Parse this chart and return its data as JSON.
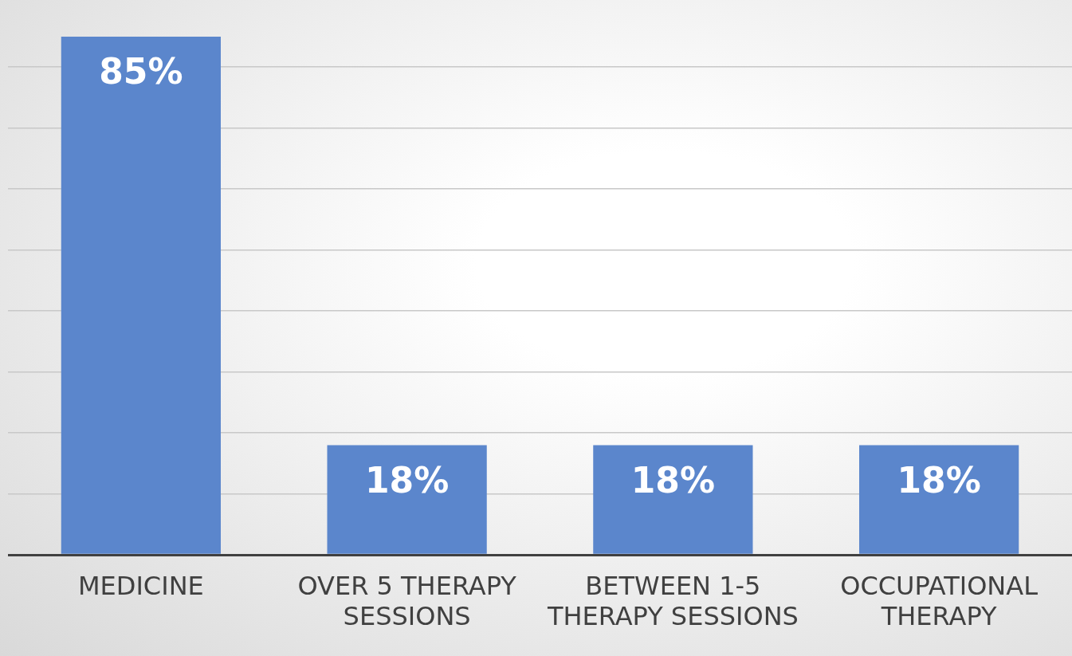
{
  "chart_data": {
    "type": "bar",
    "categories": [
      "MEDICINE",
      "OVER 5 THERAPY SESSIONS",
      "BETWEEN 1-5 THERAPY SESSIONS",
      "OCCUPATIONAL THERAPY"
    ],
    "values": [
      85,
      18,
      18,
      18
    ],
    "color": "#5b86cc",
    "value_labels": [
      "85%",
      "18%",
      "18%",
      "18%"
    ],
    "ylim": [
      0,
      91
    ],
    "yticks": [
      {
        "value": 0,
        "label": null
      },
      {
        "value": 10,
        "label": null
      },
      {
        "value": 20,
        "label": null
      },
      {
        "value": 30,
        "label": null
      },
      {
        "value": 40,
        "label": null
      },
      {
        "value": 50,
        "label": null
      },
      {
        "value": 60,
        "label": null
      },
      {
        "value": 70,
        "label": null
      },
      {
        "value": 80,
        "label": null
      }
    ],
    "grid": "y",
    "tick_labels": "x",
    "legend": false
  }
}
